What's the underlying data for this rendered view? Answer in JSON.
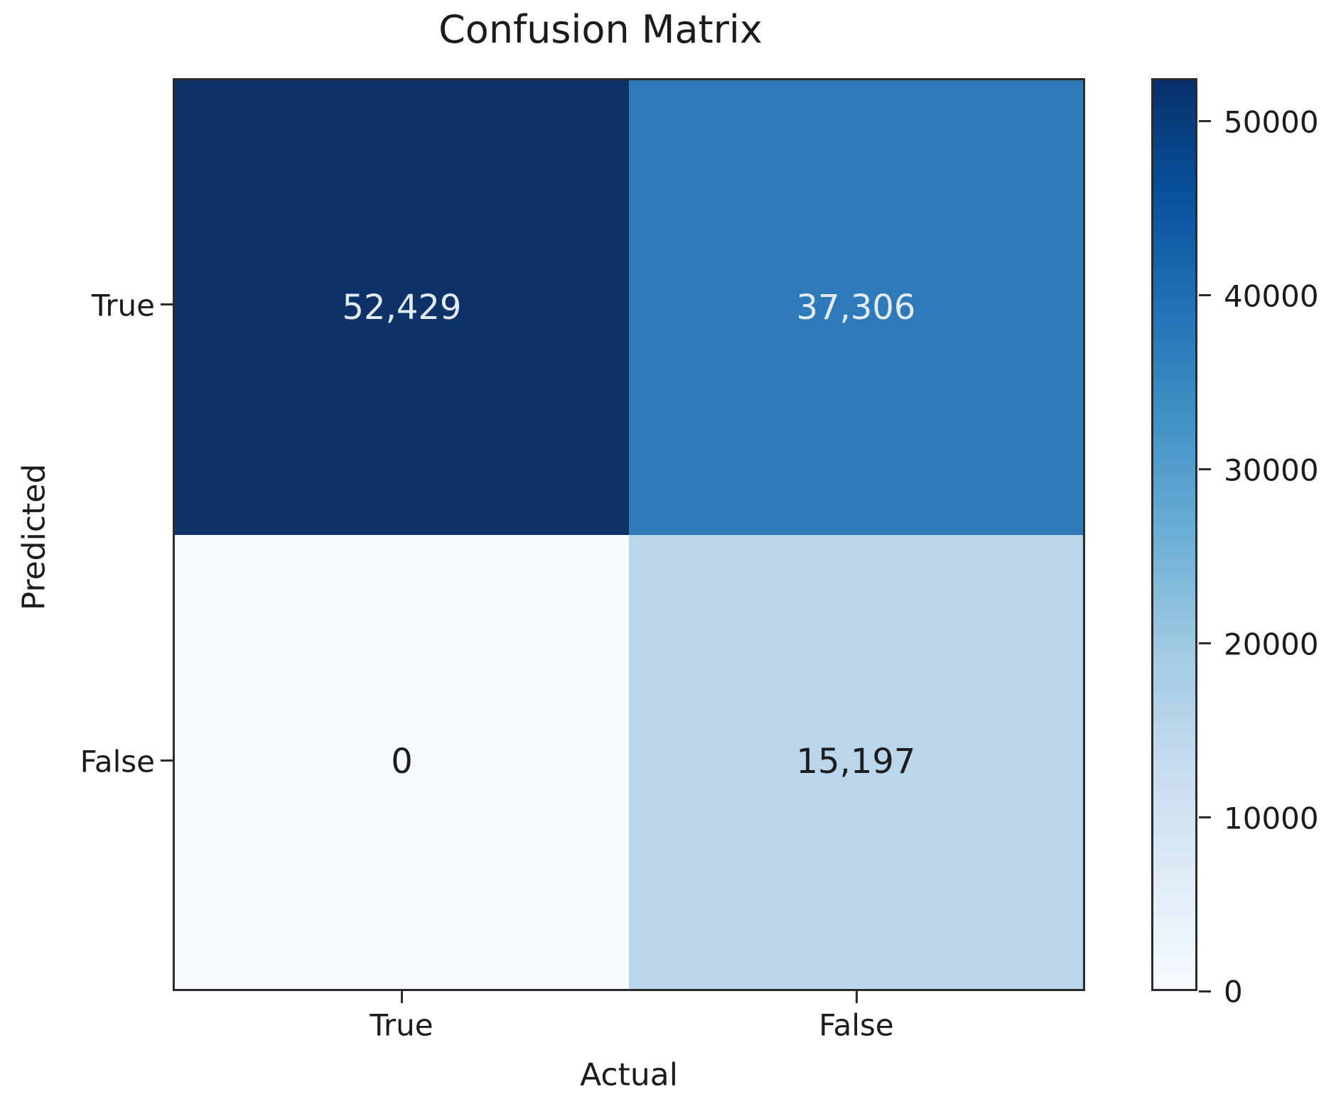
{
  "chart_data": {
    "type": "heatmap",
    "title": "Confusion Matrix",
    "xlabel": "Actual",
    "ylabel": "Predicted",
    "x_categories": [
      "True",
      "False"
    ],
    "y_categories": [
      "True",
      "False"
    ],
    "matrix": [
      [
        52429,
        37306
      ],
      [
        0,
        15197
      ]
    ],
    "cell_labels": [
      [
        "52,429",
        "37,306"
      ],
      [
        "0",
        "15,197"
      ]
    ],
    "cell_colors": [
      [
        "#0d3268",
        "#2e7ab8"
      ],
      [
        "#f7fbff",
        "#b9d6ea"
      ]
    ],
    "cell_text_colors": [
      [
        "#e2eaf5",
        "#e2eaf5"
      ],
      [
        "#1c1c1c",
        "#1c1c1c"
      ]
    ],
    "colormap": "Blues",
    "colormap_stops": [
      "#f7fbff",
      "#deebf7",
      "#c6dbef",
      "#9ecae1",
      "#6baed6",
      "#4292c6",
      "#2171b5",
      "#08519c",
      "#08306b"
    ],
    "vmin": 0,
    "vmax": 52429,
    "colorbar_ticks": [
      50000,
      40000,
      30000,
      20000,
      10000,
      0
    ],
    "colorbar_position": "right",
    "grid": false,
    "spine_color": "#2b2b2b",
    "background": "#ffffff"
  }
}
